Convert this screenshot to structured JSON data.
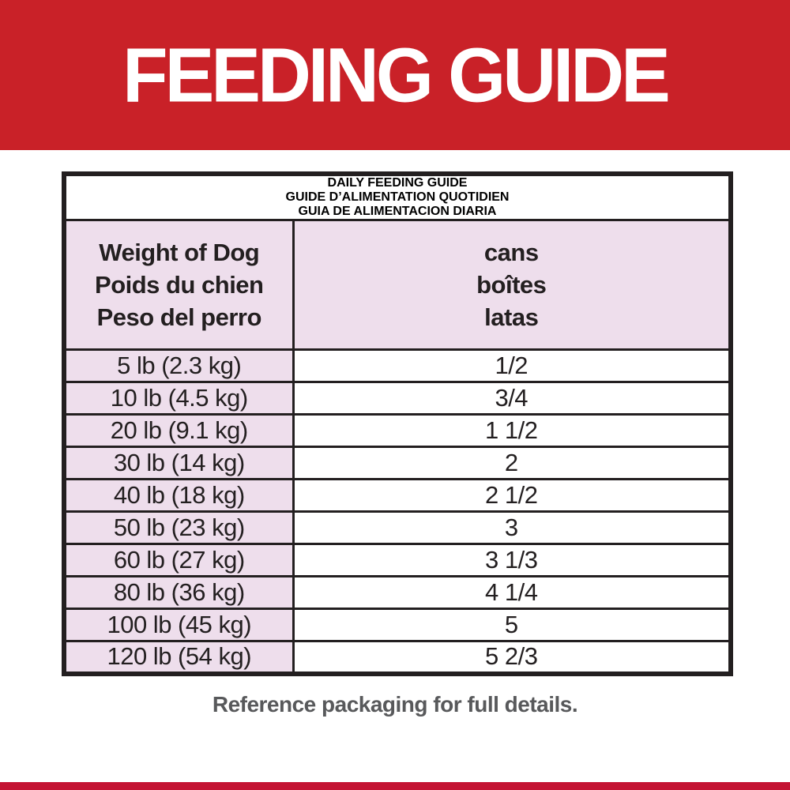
{
  "banner": {
    "title": "FEEDING GUIDE",
    "background_color": "#c92128",
    "text_color": "#ffffff"
  },
  "table": {
    "title_lines": [
      "DAILY FEEDING GUIDE",
      "GUIDE D’ALIMENTATION QUOTIDIEN",
      "GUIA DE ALIMENTACION DIARIA"
    ],
    "columns": [
      {
        "lines": [
          "Weight of Dog",
          "Poids du chien",
          "Peso del perro"
        ]
      },
      {
        "lines": [
          "cans",
          "boîtes",
          "latas"
        ]
      }
    ],
    "rows": [
      {
        "weight": "5 lb (2.3 kg)",
        "cans": "1/2"
      },
      {
        "weight": "10 lb (4.5 kg)",
        "cans": "3/4"
      },
      {
        "weight": "20 lb (9.1 kg)",
        "cans": "1 1/2"
      },
      {
        "weight": "30 lb (14 kg)",
        "cans": "2"
      },
      {
        "weight": "40 lb (18 kg)",
        "cans": "2 1/2"
      },
      {
        "weight": "50 lb (23 kg)",
        "cans": "3"
      },
      {
        "weight": "60 lb (27 kg)",
        "cans": "3 1/3"
      },
      {
        "weight": "80 lb (36 kg)",
        "cans": "4 1/4"
      },
      {
        "weight": "100 lb (45 kg)",
        "cans": "5"
      },
      {
        "weight": "120 lb (54 kg)",
        "cans": "5 2/3"
      }
    ],
    "header_background_color": "#231f20",
    "pink_cell_color": "#eedeec",
    "border_color": "#231f20"
  },
  "footer": {
    "note": "Reference packaging for full details.",
    "note_color": "#58595b",
    "strip_color": "#c41333"
  }
}
